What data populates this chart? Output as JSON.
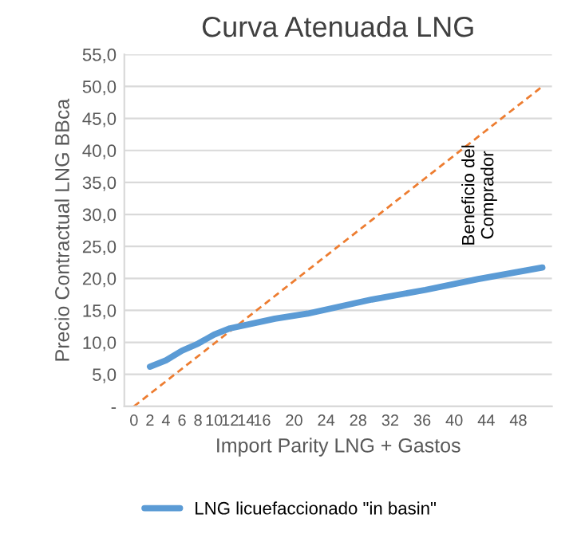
{
  "chart_data": {
    "type": "line",
    "title": "Curva Atenuada LNG",
    "xlabel": "Import Parity LNG + Gastos",
    "ylabel": "Precio Contractual LNG BBca",
    "series": [
      {
        "name": "LNG licuefaccionado \"in basin\"",
        "color": "#5b9bd5",
        "x": [
          2,
          4,
          6,
          8,
          10,
          12,
          17.6,
          21.7,
          29.7,
          36.4,
          43,
          51
        ],
        "values": [
          6.2,
          7.2,
          8.7,
          9.8,
          11.2,
          12.2,
          13.7,
          14.5,
          16.7,
          18.2,
          19.9,
          21.7
        ]
      },
      {
        "color": "#ed7d31",
        "line_style": "dashed",
        "x": [
          0,
          51
        ],
        "values": [
          0,
          50
        ]
      }
    ],
    "xlim": [
      -1.2,
      52.2
    ],
    "xticks": [
      0,
      2,
      4,
      6,
      8,
      10,
      12,
      14,
      16,
      20,
      24,
      28,
      32,
      36,
      40,
      44,
      48
    ],
    "ylim": [
      0,
      55
    ],
    "yticks": [
      {
        "value": 0,
        "label": "-"
      },
      {
        "value": 5,
        "label": "5,0"
      },
      {
        "value": 10,
        "label": "10,0"
      },
      {
        "value": 15,
        "label": "15,0"
      },
      {
        "value": 20,
        "label": "20,0"
      },
      {
        "value": 25,
        "label": "25,0"
      },
      {
        "value": 30,
        "label": "30,0"
      },
      {
        "value": 35,
        "label": "35,0"
      },
      {
        "value": 40,
        "label": "40,0"
      },
      {
        "value": 45,
        "label": "45,0"
      },
      {
        "value": 50,
        "label": "50,0"
      },
      {
        "value": 55,
        "label": "55,0"
      }
    ],
    "grid": "y",
    "legend": "bottom",
    "annotations": [
      "Beneficio del\nComprador"
    ]
  }
}
